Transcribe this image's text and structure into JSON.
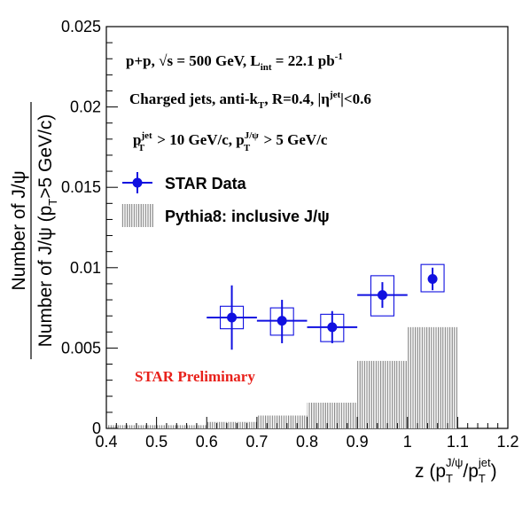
{
  "chart_data": {
    "type": "bar",
    "xlim": [
      0.4,
      1.2
    ],
    "ylim": [
      0,
      0.025
    ],
    "x_ticks": [
      "0.4",
      "0.5",
      "0.6",
      "0.7",
      "0.8",
      "0.9",
      "1",
      "1.1",
      "1.2"
    ],
    "y_ticks": [
      "0",
      "0.005",
      "0.01",
      "0.015",
      "0.02",
      "0.025"
    ],
    "xlabel_parts": {
      "main": "z (p",
      "sub1": "T",
      "sup1": "J/ψ",
      "mid": "/p",
      "sub2": "T",
      "sup2": "jet",
      "end": ")"
    },
    "ylabel_numerator": "Number of J/ψ",
    "ylabel_denominator_parts": {
      "main": "Number of J/ψ (p",
      "sub": "T",
      "end": ">5 GeV/c)"
    },
    "annotations": {
      "line1_parts": {
        "a": "p+p, ",
        "sqrt": "√s",
        "b": " = 500 GeV, L",
        "sub": "int",
        "c": " = 22.1 pb",
        "sup": "-1"
      },
      "line2_parts": {
        "a": "Charged jets, anti-k",
        "sub": "T",
        "b": ", R=0.4, |η",
        "sup": "jet",
        "c": "|<0.6"
      },
      "line3_parts": {
        "a": "p",
        "sup1": "jet",
        "sub1": "T",
        "b": " > 10 GeV/c, p",
        "sup2": "J/ψ",
        "sub2": "T",
        "c": " > 5 GeV/c"
      },
      "preliminary": "STAR Preliminary"
    },
    "legend": {
      "data_label": "STAR Data",
      "model_label": "Pythia8: inclusive J/ψ"
    },
    "series": [
      {
        "name": "STAR Data",
        "color": "#1010e0",
        "points": [
          {
            "x": 0.65,
            "y": 0.0069,
            "xerr": 0.05,
            "stat": [
              0.0049,
              0.0089
            ],
            "sys": [
              0.0062,
              0.0076
            ]
          },
          {
            "x": 0.75,
            "y": 0.0067,
            "xerr": 0.05,
            "stat": [
              0.0053,
              0.008
            ],
            "sys": [
              0.0058,
              0.0075
            ]
          },
          {
            "x": 0.85,
            "y": 0.0063,
            "xerr": 0.05,
            "stat": [
              0.0053,
              0.0073
            ],
            "sys": [
              0.0054,
              0.0071
            ]
          },
          {
            "x": 0.95,
            "y": 0.0083,
            "xerr": 0.05,
            "stat": [
              0.0075,
              0.0091
            ],
            "sys": [
              0.007,
              0.0095
            ]
          },
          {
            "x": 1.05,
            "y": 0.0093,
            "xerr": 0.0,
            "stat": [
              0.0086,
              0.01
            ],
            "sys": [
              0.0085,
              0.0102
            ]
          }
        ]
      },
      {
        "name": "Pythia8: inclusive J/ψ",
        "color": "#888888",
        "bins": [
          {
            "lo": 0.4,
            "hi": 0.5,
            "y": 0.0002
          },
          {
            "lo": 0.5,
            "hi": 0.6,
            "y": 0.0002
          },
          {
            "lo": 0.6,
            "hi": 0.7,
            "y": 0.0004
          },
          {
            "lo": 0.7,
            "hi": 0.8,
            "y": 0.0008
          },
          {
            "lo": 0.8,
            "hi": 0.9,
            "y": 0.0016
          },
          {
            "lo": 0.9,
            "hi": 1.0,
            "y": 0.0042
          },
          {
            "lo": 1.0,
            "hi": 1.1,
            "y": 0.0063
          }
        ]
      }
    ]
  }
}
